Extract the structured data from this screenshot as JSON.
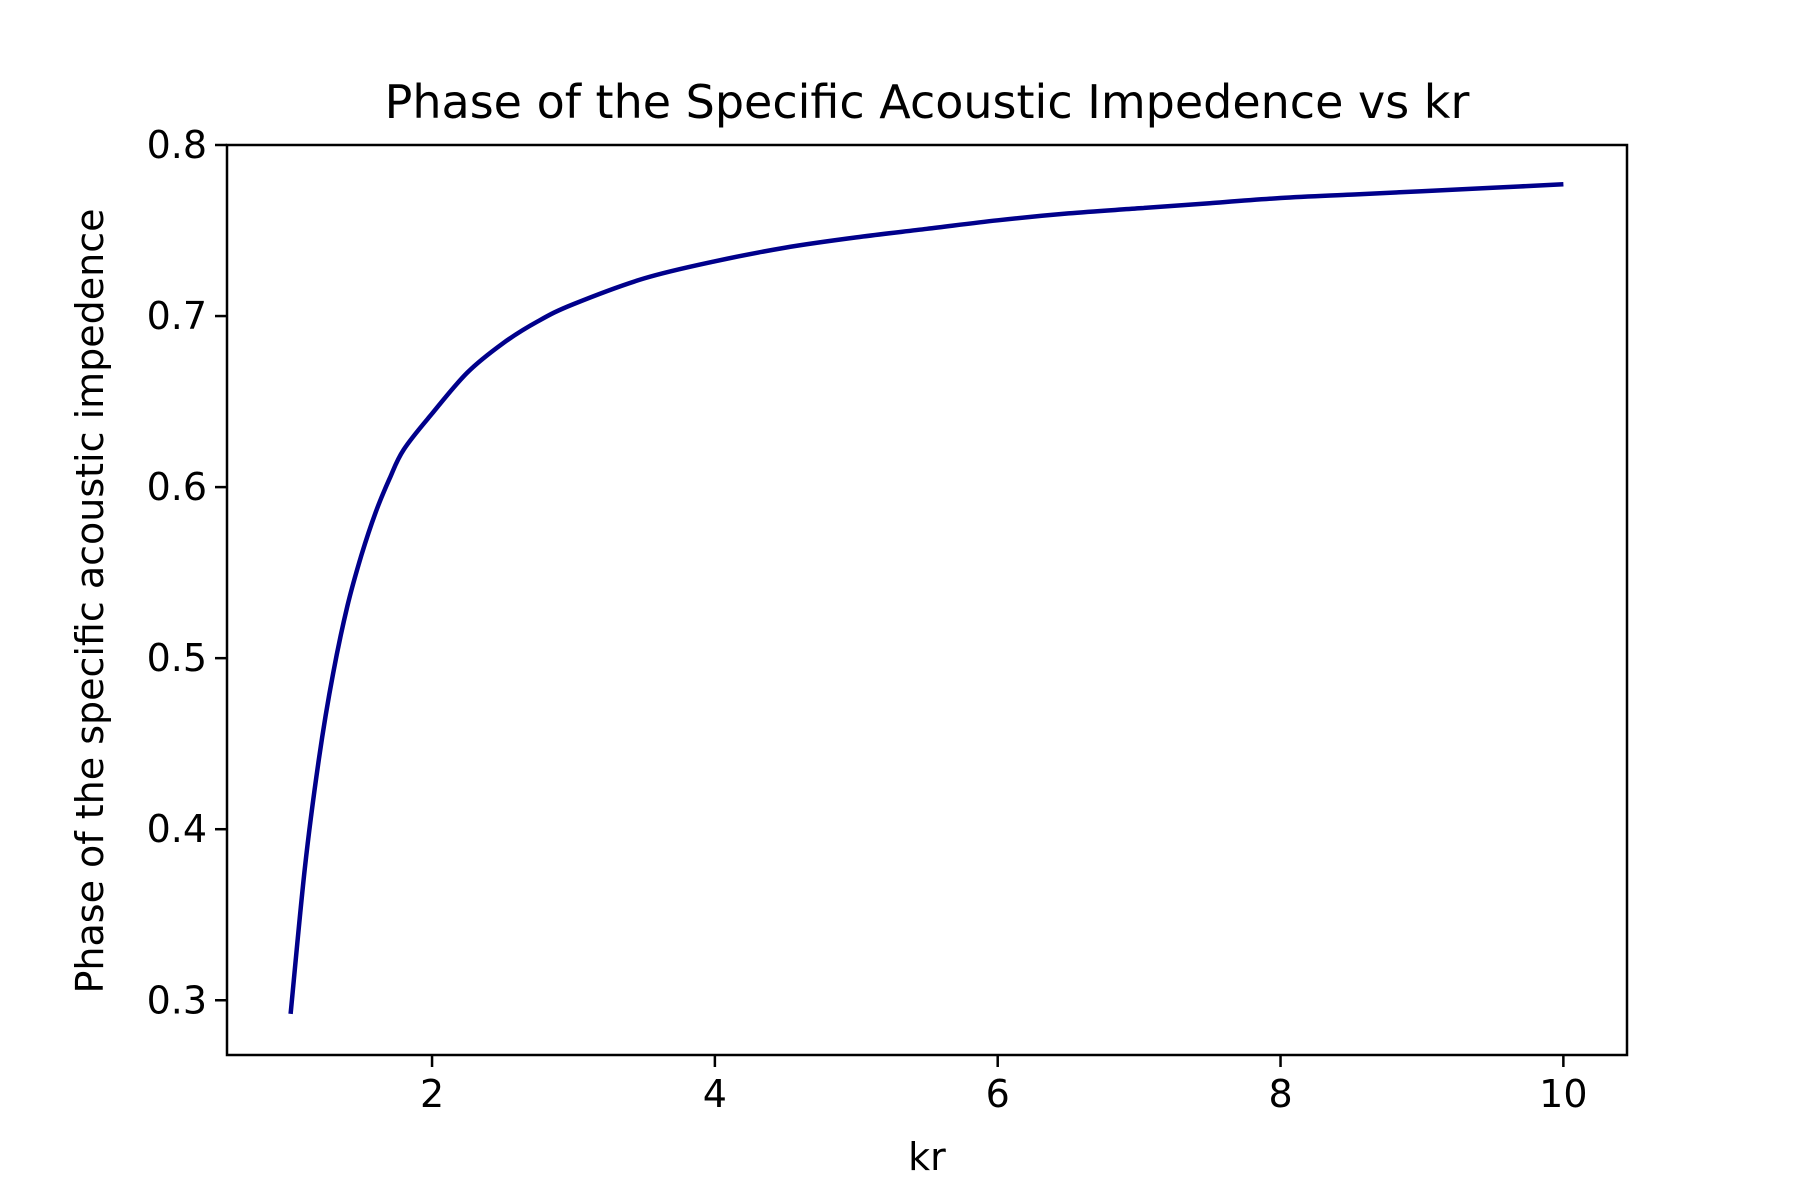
{
  "chart_data": {
    "type": "line",
    "title": "Phase of the Specific Acoustic Impedence vs kr",
    "xlabel": "kr",
    "ylabel": "Phase of the specific acoustic impedence",
    "xlim": [
      0.55,
      10.45
    ],
    "ylim": [
      0.268,
      0.8
    ],
    "xticks": [
      2,
      4,
      6,
      8,
      10
    ],
    "xtick_labels": [
      "2",
      "4",
      "6",
      "8",
      "10"
    ],
    "yticks": [
      0.3,
      0.4,
      0.5,
      0.6,
      0.7,
      0.8
    ],
    "ytick_labels": [
      "0.3",
      "0.4",
      "0.5",
      "0.6",
      "0.7",
      "0.8"
    ],
    "grid": false,
    "series": [
      {
        "color": "#00008b",
        "x": [
          1.0,
          1.1,
          1.2,
          1.3,
          1.4,
          1.5,
          1.6,
          1.7,
          1.8,
          2.0,
          2.25,
          2.5,
          2.75,
          3.0,
          3.5,
          4.0,
          4.5,
          5.0,
          5.5,
          6.0,
          6.5,
          7.0,
          7.5,
          8.0,
          8.5,
          9.0,
          9.5,
          10.0
        ],
        "y": [
          0.292,
          0.377,
          0.441,
          0.491,
          0.53,
          0.56,
          0.585,
          0.605,
          0.622,
          0.643,
          0.667,
          0.684,
          0.697,
          0.707,
          0.722,
          0.732,
          0.74,
          0.746,
          0.751,
          0.756,
          0.76,
          0.763,
          0.766,
          0.769,
          0.771,
          0.773,
          0.775,
          0.777
        ]
      }
    ]
  }
}
